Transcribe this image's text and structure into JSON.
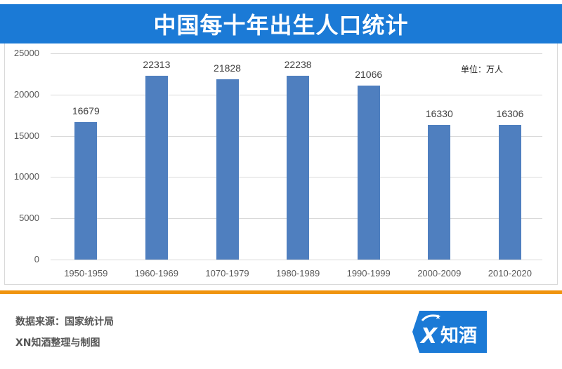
{
  "header": {
    "title": "中国每十年出生人口统计"
  },
  "chart": {
    "unit_label": "单位：万人",
    "y_ticks": [
      "25000",
      "20000",
      "15000",
      "10000",
      "5000",
      "0"
    ],
    "x_labels": [
      "1950-1959",
      "1960-1969",
      "1070-1979",
      "1980-1989",
      "1990-1999",
      "2000-2009",
      "2010-2020"
    ],
    "value_labels": [
      "16679",
      "22313",
      "21828",
      "22238",
      "21066",
      "16330",
      "16306"
    ],
    "bar_color": "#4f7fbf"
  },
  "footer": {
    "source": "数据来源：国家统计局",
    "credit": "XN知酒整理与制图",
    "logo_text": "知酒",
    "accent_color": "#f0940e",
    "brand_color": "#1b7ad6"
  },
  "chart_data": {
    "type": "bar",
    "title": "中国每十年出生人口统计",
    "categories": [
      "1950-1959",
      "1960-1969",
      "1070-1979",
      "1980-1989",
      "1990-1999",
      "2000-2009",
      "2010-2020"
    ],
    "values": [
      16679,
      22313,
      21828,
      22238,
      21066,
      16330,
      16306
    ],
    "xlabel": "",
    "ylabel": "",
    "unit": "万人",
    "ylim": [
      0,
      25000
    ],
    "yticks": [
      0,
      5000,
      10000,
      15000,
      20000,
      25000
    ],
    "grid": true,
    "legend": "none",
    "data_labels": true,
    "annotations": [
      "单位：万人"
    ],
    "source": "数据来源：国家统计局",
    "credit": "XN知酒整理与制图"
  }
}
